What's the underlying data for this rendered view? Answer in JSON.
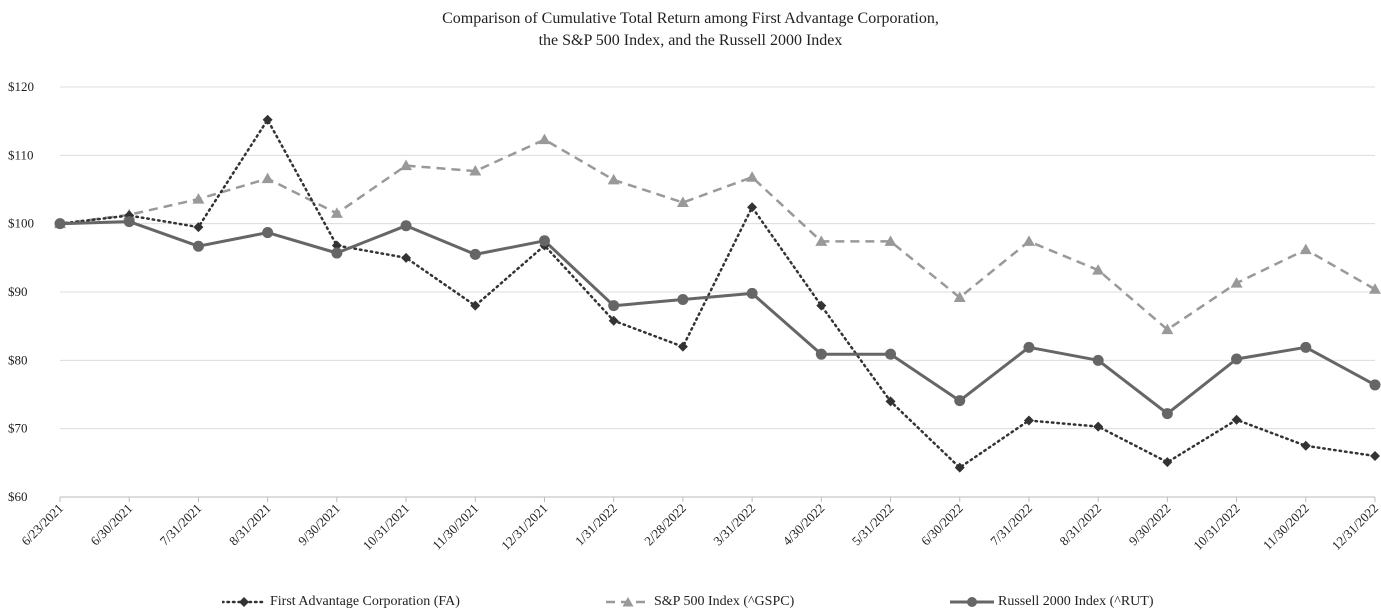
{
  "chart_data": {
    "type": "line",
    "title_lines": [
      "Comparison of Cumulative Total Return among First Advantage Corporation,",
      "the S&P 500 Index, and the Russell 2000 Index"
    ],
    "categories": [
      "6/23/2021",
      "6/30/2021",
      "7/31/2021",
      "8/31/2021",
      "9/30/2021",
      "10/31/2021",
      "11/30/2021",
      "12/31/2021",
      "1/31/2022",
      "2/28/2022",
      "3/31/2022",
      "4/30/2022",
      "5/31/2022",
      "6/30/2022",
      "7/31/2022",
      "8/31/2022",
      "9/30/2022",
      "10/31/2022",
      "11/30/2022",
      "12/31/2022"
    ],
    "y_ticks": [
      "$60",
      "$70",
      "$80",
      "$90",
      "$100",
      "$110",
      "$120"
    ],
    "ylim": [
      60,
      120
    ],
    "grid": true,
    "legend_position": "bottom",
    "series": [
      {
        "name": "First Advantage Corporation (FA)",
        "color": "#333333",
        "style": "dotted",
        "marker": "diamond",
        "values": [
          100,
          101.2,
          99.5,
          115.2,
          96.8,
          95,
          88,
          96.8,
          85.8,
          82,
          102.4,
          88,
          74,
          64.3,
          71.2,
          70.3,
          65.1,
          71.3,
          67.5,
          66
        ]
      },
      {
        "name": "S&P 500 Index (^GSPC)",
        "color": "#999999",
        "style": "dashed",
        "marker": "triangle",
        "values": [
          100,
          101.3,
          103.6,
          106.6,
          101.5,
          108.5,
          107.7,
          112.3,
          106.4,
          103.1,
          106.8,
          97.4,
          97.4,
          89.2,
          97.4,
          93.2,
          84.5,
          91.3,
          96.2,
          90.4
        ]
      },
      {
        "name": "Russell 2000 Index (^RUT)",
        "color": "#666666",
        "style": "solid",
        "marker": "circle",
        "values": [
          100,
          100.3,
          96.7,
          98.7,
          95.7,
          99.7,
          95.5,
          97.5,
          88,
          88.9,
          89.8,
          80.9,
          80.9,
          74.1,
          81.9,
          80,
          72.2,
          80.2,
          81.9,
          76.4
        ]
      }
    ]
  }
}
